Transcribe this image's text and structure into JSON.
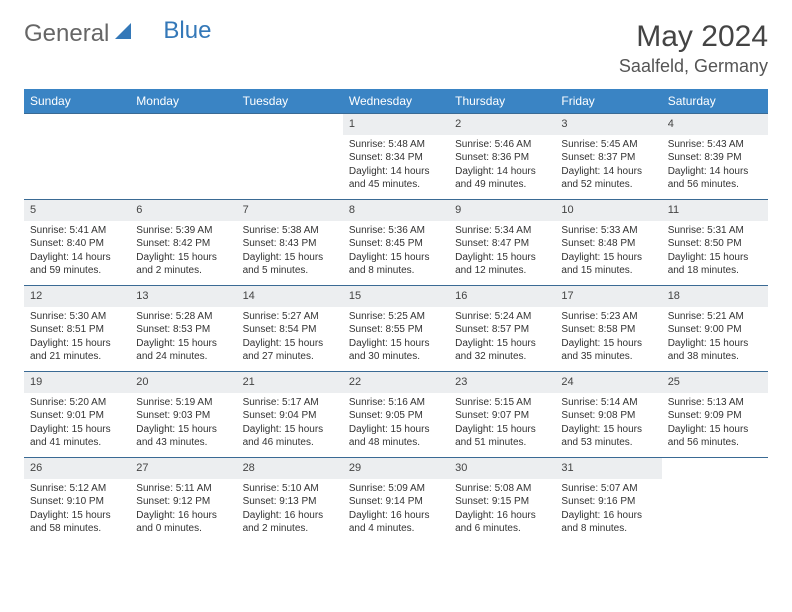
{
  "brand": {
    "part1": "General",
    "part2": "Blue"
  },
  "title": "May 2024",
  "location": "Saalfeld, Germany",
  "colors": {
    "header_bg": "#3a84c4",
    "header_text": "#ffffff",
    "daynum_bg": "#eceef0",
    "text": "#333333",
    "rule": "#3a6a94"
  },
  "day_names": [
    "Sunday",
    "Monday",
    "Tuesday",
    "Wednesday",
    "Thursday",
    "Friday",
    "Saturday"
  ],
  "weeks": [
    [
      {
        "n": "",
        "sr": "",
        "ss": "",
        "dl": ""
      },
      {
        "n": "",
        "sr": "",
        "ss": "",
        "dl": ""
      },
      {
        "n": "",
        "sr": "",
        "ss": "",
        "dl": ""
      },
      {
        "n": "1",
        "sr": "Sunrise: 5:48 AM",
        "ss": "Sunset: 8:34 PM",
        "dl": "Daylight: 14 hours and 45 minutes."
      },
      {
        "n": "2",
        "sr": "Sunrise: 5:46 AM",
        "ss": "Sunset: 8:36 PM",
        "dl": "Daylight: 14 hours and 49 minutes."
      },
      {
        "n": "3",
        "sr": "Sunrise: 5:45 AM",
        "ss": "Sunset: 8:37 PM",
        "dl": "Daylight: 14 hours and 52 minutes."
      },
      {
        "n": "4",
        "sr": "Sunrise: 5:43 AM",
        "ss": "Sunset: 8:39 PM",
        "dl": "Daylight: 14 hours and 56 minutes."
      }
    ],
    [
      {
        "n": "5",
        "sr": "Sunrise: 5:41 AM",
        "ss": "Sunset: 8:40 PM",
        "dl": "Daylight: 14 hours and 59 minutes."
      },
      {
        "n": "6",
        "sr": "Sunrise: 5:39 AM",
        "ss": "Sunset: 8:42 PM",
        "dl": "Daylight: 15 hours and 2 minutes."
      },
      {
        "n": "7",
        "sr": "Sunrise: 5:38 AM",
        "ss": "Sunset: 8:43 PM",
        "dl": "Daylight: 15 hours and 5 minutes."
      },
      {
        "n": "8",
        "sr": "Sunrise: 5:36 AM",
        "ss": "Sunset: 8:45 PM",
        "dl": "Daylight: 15 hours and 8 minutes."
      },
      {
        "n": "9",
        "sr": "Sunrise: 5:34 AM",
        "ss": "Sunset: 8:47 PM",
        "dl": "Daylight: 15 hours and 12 minutes."
      },
      {
        "n": "10",
        "sr": "Sunrise: 5:33 AM",
        "ss": "Sunset: 8:48 PM",
        "dl": "Daylight: 15 hours and 15 minutes."
      },
      {
        "n": "11",
        "sr": "Sunrise: 5:31 AM",
        "ss": "Sunset: 8:50 PM",
        "dl": "Daylight: 15 hours and 18 minutes."
      }
    ],
    [
      {
        "n": "12",
        "sr": "Sunrise: 5:30 AM",
        "ss": "Sunset: 8:51 PM",
        "dl": "Daylight: 15 hours and 21 minutes."
      },
      {
        "n": "13",
        "sr": "Sunrise: 5:28 AM",
        "ss": "Sunset: 8:53 PM",
        "dl": "Daylight: 15 hours and 24 minutes."
      },
      {
        "n": "14",
        "sr": "Sunrise: 5:27 AM",
        "ss": "Sunset: 8:54 PM",
        "dl": "Daylight: 15 hours and 27 minutes."
      },
      {
        "n": "15",
        "sr": "Sunrise: 5:25 AM",
        "ss": "Sunset: 8:55 PM",
        "dl": "Daylight: 15 hours and 30 minutes."
      },
      {
        "n": "16",
        "sr": "Sunrise: 5:24 AM",
        "ss": "Sunset: 8:57 PM",
        "dl": "Daylight: 15 hours and 32 minutes."
      },
      {
        "n": "17",
        "sr": "Sunrise: 5:23 AM",
        "ss": "Sunset: 8:58 PM",
        "dl": "Daylight: 15 hours and 35 minutes."
      },
      {
        "n": "18",
        "sr": "Sunrise: 5:21 AM",
        "ss": "Sunset: 9:00 PM",
        "dl": "Daylight: 15 hours and 38 minutes."
      }
    ],
    [
      {
        "n": "19",
        "sr": "Sunrise: 5:20 AM",
        "ss": "Sunset: 9:01 PM",
        "dl": "Daylight: 15 hours and 41 minutes."
      },
      {
        "n": "20",
        "sr": "Sunrise: 5:19 AM",
        "ss": "Sunset: 9:03 PM",
        "dl": "Daylight: 15 hours and 43 minutes."
      },
      {
        "n": "21",
        "sr": "Sunrise: 5:17 AM",
        "ss": "Sunset: 9:04 PM",
        "dl": "Daylight: 15 hours and 46 minutes."
      },
      {
        "n": "22",
        "sr": "Sunrise: 5:16 AM",
        "ss": "Sunset: 9:05 PM",
        "dl": "Daylight: 15 hours and 48 minutes."
      },
      {
        "n": "23",
        "sr": "Sunrise: 5:15 AM",
        "ss": "Sunset: 9:07 PM",
        "dl": "Daylight: 15 hours and 51 minutes."
      },
      {
        "n": "24",
        "sr": "Sunrise: 5:14 AM",
        "ss": "Sunset: 9:08 PM",
        "dl": "Daylight: 15 hours and 53 minutes."
      },
      {
        "n": "25",
        "sr": "Sunrise: 5:13 AM",
        "ss": "Sunset: 9:09 PM",
        "dl": "Daylight: 15 hours and 56 minutes."
      }
    ],
    [
      {
        "n": "26",
        "sr": "Sunrise: 5:12 AM",
        "ss": "Sunset: 9:10 PM",
        "dl": "Daylight: 15 hours and 58 minutes."
      },
      {
        "n": "27",
        "sr": "Sunrise: 5:11 AM",
        "ss": "Sunset: 9:12 PM",
        "dl": "Daylight: 16 hours and 0 minutes."
      },
      {
        "n": "28",
        "sr": "Sunrise: 5:10 AM",
        "ss": "Sunset: 9:13 PM",
        "dl": "Daylight: 16 hours and 2 minutes."
      },
      {
        "n": "29",
        "sr": "Sunrise: 5:09 AM",
        "ss": "Sunset: 9:14 PM",
        "dl": "Daylight: 16 hours and 4 minutes."
      },
      {
        "n": "30",
        "sr": "Sunrise: 5:08 AM",
        "ss": "Sunset: 9:15 PM",
        "dl": "Daylight: 16 hours and 6 minutes."
      },
      {
        "n": "31",
        "sr": "Sunrise: 5:07 AM",
        "ss": "Sunset: 9:16 PM",
        "dl": "Daylight: 16 hours and 8 minutes."
      },
      {
        "n": "",
        "sr": "",
        "ss": "",
        "dl": ""
      }
    ]
  ]
}
